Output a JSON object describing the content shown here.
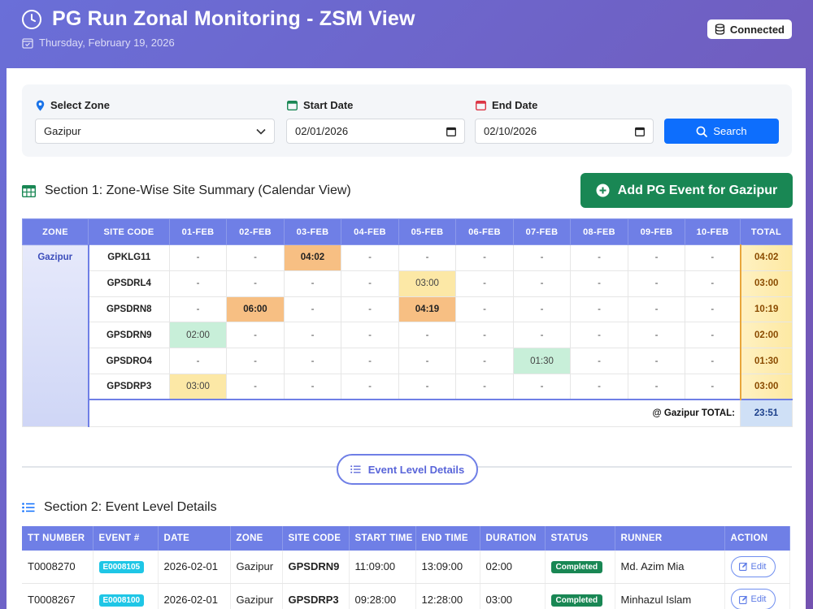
{
  "header": {
    "title": "PG Run Zonal Monitoring - ZSM View",
    "date": "Thursday, February 19, 2026",
    "status": "Connected"
  },
  "filters": {
    "zone_label": "Select Zone",
    "zone_value": "Gazipur",
    "start_label": "Start Date",
    "start_value": "02/01/2026",
    "end_label": "End Date",
    "end_value": "02/10/2026",
    "search_label": "Search"
  },
  "section1": {
    "title": "Section 1: Zone-Wise Site Summary (Calendar View)",
    "add_button": "Add PG Event for Gazipur",
    "columns": [
      "ZONE",
      "SITE CODE",
      "01-FEB",
      "02-FEB",
      "03-FEB",
      "04-FEB",
      "05-FEB",
      "06-FEB",
      "07-FEB",
      "08-FEB",
      "09-FEB",
      "10-FEB",
      "TOTAL"
    ],
    "zone": "Gazipur",
    "rows": [
      {
        "site": "GPKLG11",
        "cells": [
          "-",
          "-",
          "04:02",
          "-",
          "-",
          "-",
          "-",
          "-",
          "-",
          "-"
        ],
        "total": "04:02"
      },
      {
        "site": "GPSDRL4",
        "cells": [
          "-",
          "-",
          "-",
          "-",
          "03:00",
          "-",
          "-",
          "-",
          "-",
          "-"
        ],
        "total": "03:00"
      },
      {
        "site": "GPSDRN8",
        "cells": [
          "-",
          "06:00",
          "-",
          "-",
          "04:19",
          "-",
          "-",
          "-",
          "-",
          "-"
        ],
        "total": "10:19"
      },
      {
        "site": "GPSDRN9",
        "cells": [
          "02:00",
          "-",
          "-",
          "-",
          "-",
          "-",
          "-",
          "-",
          "-",
          "-"
        ],
        "total": "02:00"
      },
      {
        "site": "GPSDRO4",
        "cells": [
          "-",
          "-",
          "-",
          "-",
          "-",
          "-",
          "01:30",
          "-",
          "-",
          "-"
        ],
        "total": "01:30"
      },
      {
        "site": "GPSDRP3",
        "cells": [
          "03:00",
          "-",
          "-",
          "-",
          "-",
          "-",
          "-",
          "-",
          "-",
          "-"
        ],
        "total": "03:00"
      }
    ],
    "grand_label": "@ Gazipur TOTAL:",
    "grand_total": "23:51"
  },
  "divider_pill": "Event Level Details",
  "section2": {
    "title": "Section 2: Event Level Details",
    "columns": [
      "TT NUMBER",
      "EVENT #",
      "DATE",
      "ZONE",
      "SITE CODE",
      "START TIME",
      "END TIME",
      "DURATION",
      "STATUS",
      "RUNNER",
      "ACTION"
    ],
    "rows": [
      {
        "tt": "T0008270",
        "event": "E0008105",
        "date": "2026-02-01",
        "zone": "Gazipur",
        "site": "GPSDRN9",
        "start": "11:09:00",
        "end": "13:09:00",
        "duration": "02:00",
        "status": "Completed",
        "runner": "Md. Azim Mia",
        "action": "Edit"
      },
      {
        "tt": "T0008267",
        "event": "E0008100",
        "date": "2026-02-01",
        "zone": "Gazipur",
        "site": "GPSDRP3",
        "start": "09:28:00",
        "end": "12:28:00",
        "duration": "03:00",
        "status": "Completed",
        "runner": "Minhazul Islam",
        "action": "Edit"
      }
    ]
  },
  "colors": {
    "accent": "#6f7fe6",
    "primary": "#0d6efd",
    "success": "#198754",
    "info": "#1fc6e6"
  }
}
